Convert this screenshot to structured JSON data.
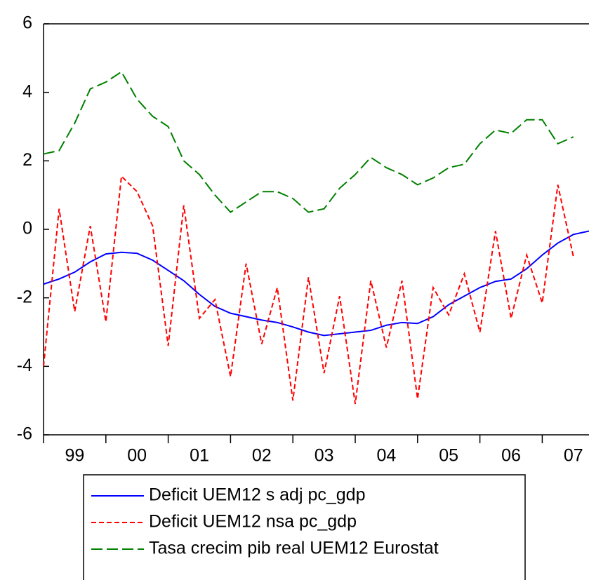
{
  "chart_data": {
    "type": "line",
    "x": [
      1999,
      1999.25,
      1999.5,
      1999.75,
      2000,
      2000.25,
      2000.5,
      2000.75,
      2001,
      2001.25,
      2001.5,
      2001.75,
      2002,
      2002.25,
      2002.5,
      2002.75,
      2003,
      2003.25,
      2003.5,
      2003.75,
      2004,
      2004.25,
      2004.5,
      2004.75,
      2005,
      2005.25,
      2005.5,
      2005.75,
      2006,
      2006.25,
      2006.5,
      2006.75,
      2007,
      2007.25,
      2007.5,
      2007.75
    ],
    "series": [
      {
        "name": "Deficit UEM12 s adj pc_gdp",
        "color": "#0000ff",
        "dash": "solid",
        "values": [
          -1.6,
          -1.45,
          -1.25,
          -0.95,
          -0.72,
          -0.67,
          -0.7,
          -0.9,
          -1.2,
          -1.5,
          -1.9,
          -2.25,
          -2.45,
          -2.55,
          -2.65,
          -2.72,
          -2.85,
          -3.0,
          -3.1,
          -3.05,
          -3.0,
          -2.95,
          -2.8,
          -2.72,
          -2.75,
          -2.55,
          -2.2,
          -1.95,
          -1.7,
          -1.52,
          -1.45,
          -1.15,
          -0.75,
          -0.4,
          -0.15,
          -0.05
        ]
      },
      {
        "name": "Deficit UEM12 nsa pc_gdp",
        "color": "#ff0000",
        "dash": "short",
        "values": [
          -4.0,
          0.6,
          -2.4,
          0.1,
          -2.7,
          1.55,
          1.1,
          0.1,
          -3.4,
          0.7,
          -2.6,
          -2.05,
          -4.3,
          -1.0,
          -3.35,
          -1.7,
          -5.0,
          -1.4,
          -4.2,
          -1.95,
          -5.1,
          -1.5,
          -3.45,
          -1.5,
          -4.95,
          -1.7,
          -2.5,
          -1.3,
          -3.0,
          -0.05,
          -2.6,
          -0.75,
          -2.15,
          1.3,
          -0.8,
          null
        ]
      },
      {
        "name": "Tasa crecim pib real UEM12 Eurostat",
        "color": "#008000",
        "dash": "long",
        "values": [
          2.2,
          2.3,
          3.1,
          4.1,
          4.3,
          4.6,
          3.8,
          3.3,
          3.0,
          2.0,
          1.6,
          1.0,
          0.5,
          0.8,
          1.1,
          1.1,
          0.9,
          0.5,
          0.6,
          1.2,
          1.6,
          2.1,
          1.8,
          1.6,
          1.3,
          1.5,
          1.8,
          1.9,
          2.5,
          2.9,
          2.8,
          3.2,
          3.2,
          2.5,
          2.7,
          null
        ]
      }
    ],
    "xlim": [
      1999,
      2007.75
    ],
    "xticks": [
      {
        "value": 1999.5,
        "label": "99"
      },
      {
        "value": 2000.5,
        "label": "00"
      },
      {
        "value": 2001.5,
        "label": "01"
      },
      {
        "value": 2002.5,
        "label": "02"
      },
      {
        "value": 2003.5,
        "label": "03"
      },
      {
        "value": 2004.5,
        "label": "04"
      },
      {
        "value": 2005.5,
        "label": "05"
      },
      {
        "value": 2006.5,
        "label": "06"
      },
      {
        "value": 2007.5,
        "label": "07"
      }
    ],
    "ylim": [
      -6,
      6
    ],
    "yticks": [
      -6,
      -4,
      -2,
      0,
      2,
      4,
      6
    ],
    "legend": "bottom"
  }
}
